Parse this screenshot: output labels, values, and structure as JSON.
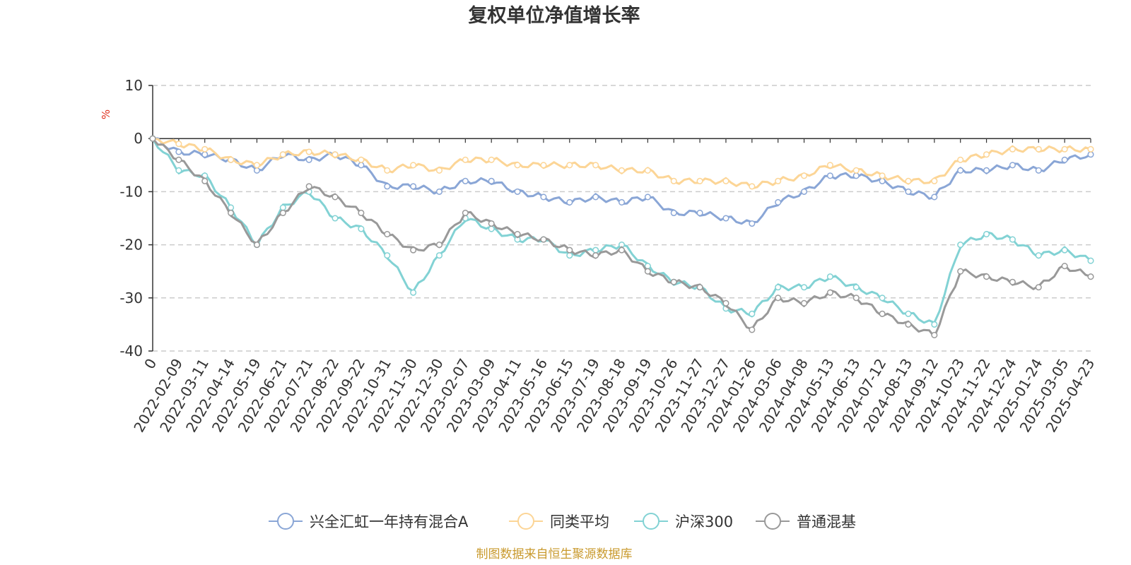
{
  "chart_data": {
    "type": "line",
    "title": "复权单位净值增长率",
    "ylabel": "%",
    "ylim": [
      -40,
      10
    ],
    "yticks": [
      10,
      0,
      -10,
      -20,
      -30,
      -40
    ],
    "grid": true,
    "legend_position": "bottom",
    "x": [
      "0",
      "2022-02-09",
      "2022-03-11",
      "2022-04-14",
      "2022-05-19",
      "2022-06-21",
      "2022-07-21",
      "2022-08-22",
      "2022-09-22",
      "2022-10-31",
      "2022-11-30",
      "2022-12-30",
      "2023-02-07",
      "2023-03-09",
      "2023-04-11",
      "2023-05-16",
      "2023-06-15",
      "2023-07-19",
      "2023-08-18",
      "2023-09-19",
      "2023-10-26",
      "2023-11-27",
      "2023-12-27",
      "2024-01-26",
      "2024-03-06",
      "2024-04-08",
      "2024-05-13",
      "2024-06-13",
      "2024-07-12",
      "2024-08-13",
      "2024-09-12",
      "2024-10-23",
      "2024-11-22",
      "2024-12-24",
      "2025-01-24",
      "2025-03-05",
      "2025-04-23"
    ],
    "series": [
      {
        "name": "兴全汇虹一年持有混合A",
        "color": "#8aa6d6",
        "values": [
          0,
          -2.5,
          -3,
          -4,
          -6,
          -3,
          -4,
          -3,
          -5,
          -9,
          -9,
          -10,
          -8,
          -8,
          -10,
          -11,
          -12,
          -11,
          -12,
          -11,
          -14,
          -14,
          -15,
          -16,
          -12,
          -10,
          -7,
          -7,
          -8,
          -10,
          -11,
          -6,
          -6,
          -5,
          -6,
          -4,
          -3
        ]
      },
      {
        "name": "同类平均",
        "color": "#fcd596",
        "values": [
          0,
          -1,
          -2,
          -4,
          -5,
          -3,
          -2.5,
          -3,
          -4,
          -6,
          -5,
          -6,
          -4,
          -4,
          -5,
          -5,
          -5,
          -5,
          -6,
          -6,
          -8,
          -8,
          -8,
          -9,
          -8,
          -7,
          -5,
          -6,
          -7,
          -8,
          -8,
          -4,
          -3,
          -2,
          -2,
          -2,
          -2
        ]
      },
      {
        "name": "沪深300",
        "color": "#82d2d4",
        "values": [
          0,
          -6,
          -7,
          -13,
          -20,
          -13,
          -10,
          -15,
          -17,
          -22,
          -29,
          -22,
          -15,
          -17,
          -19,
          -19,
          -22,
          -21,
          -20,
          -24,
          -27,
          -28,
          -32,
          -33,
          -28,
          -28,
          -26,
          -28,
          -30,
          -33,
          -35,
          -20,
          -18,
          -19,
          -22,
          -21,
          -23
        ]
      },
      {
        "name": "普通混基",
        "color": "#999999",
        "values": [
          0,
          -4,
          -8,
          -14,
          -20,
          -14,
          -9,
          -11,
          -14,
          -18,
          -21,
          -20,
          -14,
          -16,
          -18,
          -19,
          -21,
          -22,
          -21,
          -25,
          -27,
          -28,
          -31,
          -36,
          -30,
          -31,
          -29,
          -30,
          -33,
          -35,
          -37,
          -25,
          -26,
          -27,
          -28,
          -24,
          -26
        ]
      }
    ]
  },
  "source_note": "制图数据来自恒生聚源数据库"
}
